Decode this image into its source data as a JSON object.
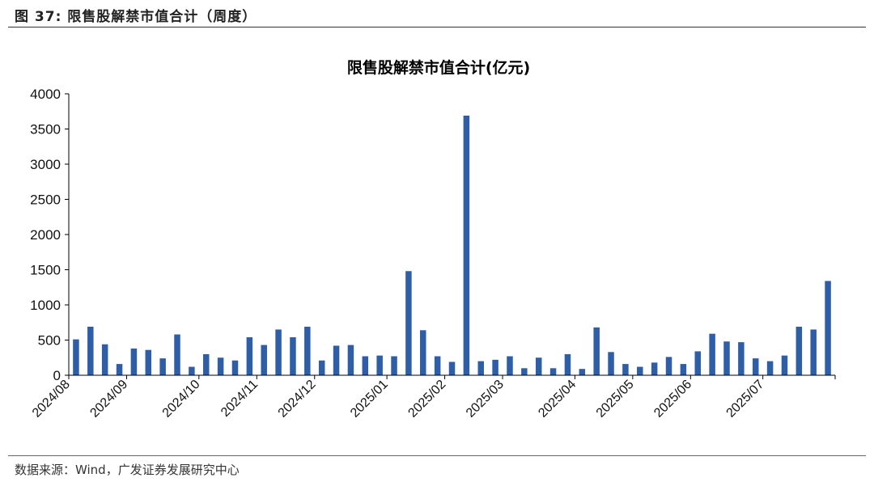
{
  "header": {
    "figure_label": "图 37:",
    "figure_title": "限售股解禁市值合计（周度）"
  },
  "footer": {
    "source": "数据来源：Wind，广发证券发展研究中心"
  },
  "colors": {
    "bar": "#2e5ea8",
    "axis": "#000000"
  },
  "chart_data": {
    "type": "bar",
    "title": "限售股解禁市值合计(亿元)",
    "xlabel": "",
    "ylabel": "",
    "ylim": [
      0,
      4000
    ],
    "yticks": [
      0,
      500,
      1000,
      1500,
      2000,
      2500,
      3000,
      3500,
      4000
    ],
    "month_labels": [
      "2024/08",
      "2024/09",
      "2024/10",
      "2024/11",
      "2024/12",
      "2025/01",
      "2025/02",
      "2025/03",
      "2025/04",
      "2025/05",
      "2025/06",
      "2025/07"
    ],
    "month_start_index": [
      0,
      4,
      9,
      13,
      17,
      22,
      26,
      30,
      35,
      39,
      43,
      48
    ],
    "values": [
      510,
      690,
      440,
      160,
      380,
      360,
      240,
      580,
      120,
      300,
      250,
      210,
      540,
      430,
      650,
      540,
      690,
      210,
      420,
      430,
      270,
      280,
      270,
      1480,
      640,
      270,
      190,
      3690,
      200,
      220,
      270,
      100,
      250,
      100,
      300,
      90,
      680,
      330,
      160,
      120,
      180,
      260,
      160,
      340,
      590,
      480,
      470,
      240,
      200,
      280,
      690,
      650,
      1340
    ],
    "grid": false,
    "legend": "none"
  }
}
